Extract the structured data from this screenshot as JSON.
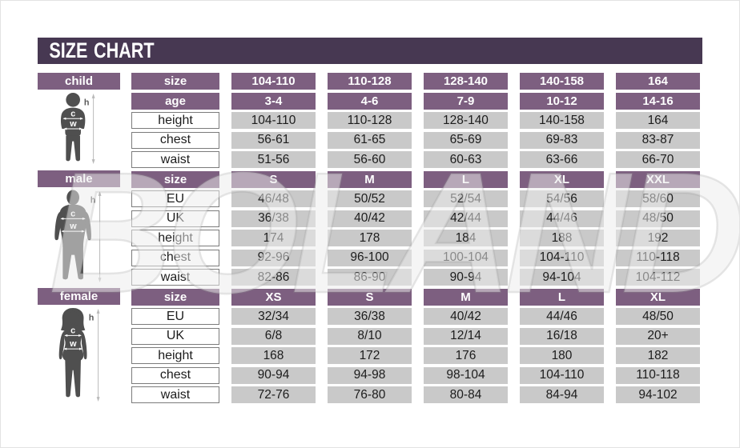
{
  "title": "SIZE CHART",
  "watermark": "BOLAND",
  "colors": {
    "header_band": "#473852",
    "header_cell": "#7d5f80",
    "value_cell": "#c9c9c9",
    "silhouette": "#4f4f4f",
    "label_border": "#7b7b7b"
  },
  "markers": {
    "h": "h",
    "c": "c",
    "w": "w"
  },
  "sections": [
    {
      "id": "child",
      "label": "child",
      "figure_icon": "child-silhouette-icon",
      "rows": [
        {
          "label": "size",
          "header": true,
          "values": [
            "104-110",
            "110-128",
            "128-140",
            "140-158",
            "164"
          ]
        },
        {
          "label": "age",
          "header": true,
          "values": [
            "3-4",
            "4-6",
            "7-9",
            "10-12",
            "14-16"
          ]
        },
        {
          "label": "height",
          "header": false,
          "values": [
            "104-110",
            "110-128",
            "128-140",
            "140-158",
            "164"
          ]
        },
        {
          "label": "chest",
          "header": false,
          "values": [
            "56-61",
            "61-65",
            "65-69",
            "69-83",
            "83-87"
          ]
        },
        {
          "label": "waist",
          "header": false,
          "values": [
            "51-56",
            "56-60",
            "60-63",
            "63-66",
            "66-70"
          ]
        }
      ]
    },
    {
      "id": "male",
      "label": "male",
      "figure_icon": "male-silhouette-icon",
      "rows": [
        {
          "label": "size",
          "header": true,
          "values": [
            "S",
            "M",
            "L",
            "XL",
            "XXL"
          ]
        },
        {
          "label": "EU",
          "header": false,
          "values": [
            "46/48",
            "50/52",
            "52/54",
            "54/56",
            "58/60"
          ]
        },
        {
          "label": "UK",
          "header": false,
          "values": [
            "36/38",
            "40/42",
            "42/44",
            "44/46",
            "48/50"
          ]
        },
        {
          "label": "height",
          "header": false,
          "values": [
            "174",
            "178",
            "184",
            "188",
            "192"
          ]
        },
        {
          "label": "chest",
          "header": false,
          "values": [
            "92-96",
            "96-100",
            "100-104",
            "104-110",
            "110-118"
          ]
        },
        {
          "label": "waist",
          "header": false,
          "values": [
            "82-86",
            "86-90",
            "90-94",
            "94-104",
            "104-112"
          ]
        }
      ]
    },
    {
      "id": "female",
      "label": "female",
      "figure_icon": "female-silhouette-icon",
      "rows": [
        {
          "label": "size",
          "header": true,
          "values": [
            "XS",
            "S",
            "M",
            "L",
            "XL"
          ]
        },
        {
          "label": "EU",
          "header": false,
          "values": [
            "32/34",
            "36/38",
            "40/42",
            "44/46",
            "48/50"
          ]
        },
        {
          "label": "UK",
          "header": false,
          "values": [
            "6/8",
            "8/10",
            "12/14",
            "16/18",
            "20+"
          ]
        },
        {
          "label": "height",
          "header": false,
          "values": [
            "168",
            "172",
            "176",
            "180",
            "182"
          ]
        },
        {
          "label": "chest",
          "header": false,
          "values": [
            "90-94",
            "94-98",
            "98-104",
            "104-110",
            "110-118"
          ]
        },
        {
          "label": "waist",
          "header": false,
          "values": [
            "72-76",
            "76-80",
            "80-84",
            "84-94",
            "94-102"
          ]
        }
      ]
    }
  ]
}
